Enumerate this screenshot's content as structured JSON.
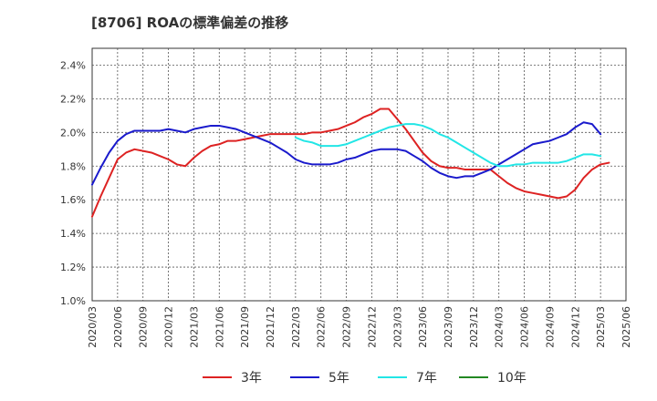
{
  "chart_data": {
    "type": "line",
    "title": "[8706]  ROAの標準偏差の推移",
    "xlabel": "",
    "ylabel": "",
    "ylim": [
      1.0,
      2.5
    ],
    "grid": true,
    "legend_position": "bottom",
    "x_ticks": [
      "2020/03",
      "2020/06",
      "2020/09",
      "2020/12",
      "2021/03",
      "2021/06",
      "2021/09",
      "2021/12",
      "2022/03",
      "2022/06",
      "2022/09",
      "2022/12",
      "2023/03",
      "2023/06",
      "2023/09",
      "2023/12",
      "2024/03",
      "2024/06",
      "2024/09",
      "2024/12",
      "2025/03",
      "2025/06"
    ],
    "y_ticks": [
      "1.0%",
      "1.2%",
      "1.4%",
      "1.6%",
      "1.8%",
      "2.0%",
      "2.2%",
      "2.4%"
    ],
    "series": [
      {
        "name": "3年",
        "color": "#dd2222",
        "points": [
          [
            "2020/03",
            1.5
          ],
          [
            "2020/04",
            1.62
          ],
          [
            "2020/05",
            1.73
          ],
          [
            "2020/06",
            1.84
          ],
          [
            "2020/07",
            1.88
          ],
          [
            "2020/08",
            1.9
          ],
          [
            "2020/09",
            1.89
          ],
          [
            "2020/10",
            1.88
          ],
          [
            "2020/11",
            1.86
          ],
          [
            "2020/12",
            1.84
          ],
          [
            "2021/01",
            1.81
          ],
          [
            "2021/02",
            1.8
          ],
          [
            "2021/03",
            1.85
          ],
          [
            "2021/04",
            1.89
          ],
          [
            "2021/05",
            1.92
          ],
          [
            "2021/06",
            1.93
          ],
          [
            "2021/07",
            1.95
          ],
          [
            "2021/08",
            1.95
          ],
          [
            "2021/09",
            1.96
          ],
          [
            "2021/10",
            1.97
          ],
          [
            "2021/11",
            1.98
          ],
          [
            "2021/12",
            1.99
          ],
          [
            "2022/01",
            1.99
          ],
          [
            "2022/02",
            1.99
          ],
          [
            "2022/03",
            1.99
          ],
          [
            "2022/04",
            1.99
          ],
          [
            "2022/05",
            2.0
          ],
          [
            "2022/06",
            2.0
          ],
          [
            "2022/07",
            2.01
          ],
          [
            "2022/08",
            2.02
          ],
          [
            "2022/09",
            2.04
          ],
          [
            "2022/10",
            2.06
          ],
          [
            "2022/11",
            2.09
          ],
          [
            "2022/12",
            2.11
          ],
          [
            "2023/01",
            2.14
          ],
          [
            "2023/02",
            2.14
          ],
          [
            "2023/03",
            2.08
          ],
          [
            "2023/04",
            2.02
          ],
          [
            "2023/05",
            1.95
          ],
          [
            "2023/06",
            1.88
          ],
          [
            "2023/07",
            1.83
          ],
          [
            "2023/08",
            1.8
          ],
          [
            "2023/09",
            1.79
          ],
          [
            "2023/10",
            1.79
          ],
          [
            "2023/11",
            1.78
          ],
          [
            "2023/12",
            1.78
          ],
          [
            "2024/01",
            1.78
          ],
          [
            "2024/02",
            1.78
          ],
          [
            "2024/03",
            1.74
          ],
          [
            "2024/04",
            1.7
          ],
          [
            "2024/05",
            1.67
          ],
          [
            "2024/06",
            1.65
          ],
          [
            "2024/07",
            1.64
          ],
          [
            "2024/08",
            1.63
          ],
          [
            "2024/09",
            1.62
          ],
          [
            "2024/10",
            1.61
          ],
          [
            "2024/11",
            1.62
          ],
          [
            "2024/12",
            1.66
          ],
          [
            "2025/01",
            1.73
          ],
          [
            "2025/02",
            1.78
          ],
          [
            "2025/03",
            1.81
          ],
          [
            "2025/04",
            1.82
          ]
        ]
      },
      {
        "name": "5年",
        "color": "#1a1acc",
        "points": [
          [
            "2020/03",
            1.69
          ],
          [
            "2020/04",
            1.79
          ],
          [
            "2020/05",
            1.88
          ],
          [
            "2020/06",
            1.95
          ],
          [
            "2020/07",
            1.99
          ],
          [
            "2020/08",
            2.01
          ],
          [
            "2020/09",
            2.01
          ],
          [
            "2020/10",
            2.01
          ],
          [
            "2020/11",
            2.01
          ],
          [
            "2020/12",
            2.02
          ],
          [
            "2021/01",
            2.01
          ],
          [
            "2021/02",
            2.0
          ],
          [
            "2021/03",
            2.02
          ],
          [
            "2021/04",
            2.03
          ],
          [
            "2021/05",
            2.04
          ],
          [
            "2021/06",
            2.04
          ],
          [
            "2021/07",
            2.03
          ],
          [
            "2021/08",
            2.02
          ],
          [
            "2021/09",
            2.0
          ],
          [
            "2021/10",
            1.98
          ],
          [
            "2021/11",
            1.96
          ],
          [
            "2021/12",
            1.94
          ],
          [
            "2022/01",
            1.91
          ],
          [
            "2022/02",
            1.88
          ],
          [
            "2022/03",
            1.84
          ],
          [
            "2022/04",
            1.82
          ],
          [
            "2022/05",
            1.81
          ],
          [
            "2022/06",
            1.81
          ],
          [
            "2022/07",
            1.81
          ],
          [
            "2022/08",
            1.82
          ],
          [
            "2022/09",
            1.84
          ],
          [
            "2022/10",
            1.85
          ],
          [
            "2022/11",
            1.87
          ],
          [
            "2022/12",
            1.89
          ],
          [
            "2023/01",
            1.9
          ],
          [
            "2023/02",
            1.9
          ],
          [
            "2023/03",
            1.9
          ],
          [
            "2023/04",
            1.89
          ],
          [
            "2023/05",
            1.86
          ],
          [
            "2023/06",
            1.83
          ],
          [
            "2023/07",
            1.79
          ],
          [
            "2023/08",
            1.76
          ],
          [
            "2023/09",
            1.74
          ],
          [
            "2023/10",
            1.73
          ],
          [
            "2023/11",
            1.74
          ],
          [
            "2023/12",
            1.74
          ],
          [
            "2024/01",
            1.76
          ],
          [
            "2024/02",
            1.78
          ],
          [
            "2024/03",
            1.81
          ],
          [
            "2024/04",
            1.84
          ],
          [
            "2024/05",
            1.87
          ],
          [
            "2024/06",
            1.9
          ],
          [
            "2024/07",
            1.93
          ],
          [
            "2024/08",
            1.94
          ],
          [
            "2024/09",
            1.95
          ],
          [
            "2024/10",
            1.97
          ],
          [
            "2024/11",
            1.99
          ],
          [
            "2024/12",
            2.03
          ],
          [
            "2025/01",
            2.06
          ],
          [
            "2025/02",
            2.05
          ],
          [
            "2025/03",
            1.99
          ]
        ]
      },
      {
        "name": "7年",
        "color": "#22e6e6",
        "points": [
          [
            "2022/03",
            1.97
          ],
          [
            "2022/04",
            1.95
          ],
          [
            "2022/05",
            1.94
          ],
          [
            "2022/06",
            1.92
          ],
          [
            "2022/07",
            1.92
          ],
          [
            "2022/08",
            1.92
          ],
          [
            "2022/09",
            1.93
          ],
          [
            "2022/10",
            1.95
          ],
          [
            "2022/11",
            1.97
          ],
          [
            "2022/12",
            1.99
          ],
          [
            "2023/01",
            2.01
          ],
          [
            "2023/02",
            2.03
          ],
          [
            "2023/03",
            2.04
          ],
          [
            "2023/04",
            2.05
          ],
          [
            "2023/05",
            2.05
          ],
          [
            "2023/06",
            2.04
          ],
          [
            "2023/07",
            2.02
          ],
          [
            "2023/08",
            1.99
          ],
          [
            "2023/09",
            1.97
          ],
          [
            "2023/10",
            1.94
          ],
          [
            "2023/11",
            1.91
          ],
          [
            "2023/12",
            1.88
          ],
          [
            "2024/01",
            1.85
          ],
          [
            "2024/02",
            1.82
          ],
          [
            "2024/03",
            1.8
          ],
          [
            "2024/04",
            1.8
          ],
          [
            "2024/05",
            1.81
          ],
          [
            "2024/06",
            1.81
          ],
          [
            "2024/07",
            1.82
          ],
          [
            "2024/08",
            1.82
          ],
          [
            "2024/09",
            1.82
          ],
          [
            "2024/10",
            1.82
          ],
          [
            "2024/11",
            1.83
          ],
          [
            "2024/12",
            1.85
          ],
          [
            "2025/01",
            1.87
          ],
          [
            "2025/02",
            1.87
          ],
          [
            "2025/03",
            1.86
          ]
        ]
      },
      {
        "name": "10年",
        "color": "#228822",
        "points": []
      }
    ]
  }
}
